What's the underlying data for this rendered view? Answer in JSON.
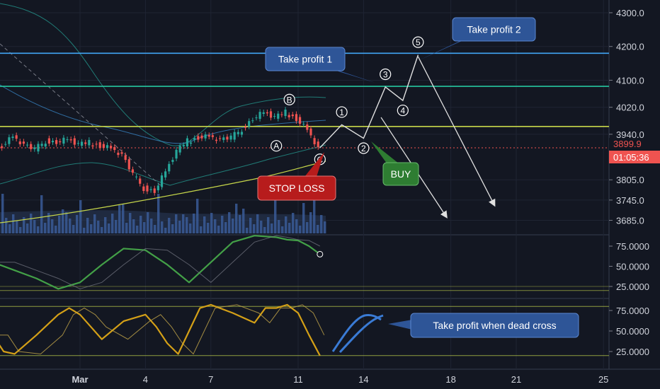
{
  "chart_data": {
    "type": "line",
    "instrument_note": "",
    "price_axis": {
      "ticks": [
        4300.0,
        4200.0,
        4100.0,
        4020.0,
        3940.0,
        3805.0,
        3745.0,
        3685.0
      ],
      "tick_labels": [
        "4300.0",
        "4200.0",
        "4100.0",
        "4020.0",
        "3940.0",
        "3805.0",
        "3745.0",
        "3685.0"
      ],
      "current_price_label": "3899.9",
      "countdown_label": "01:05:36"
    },
    "time_axis": {
      "labels": [
        {
          "text": "Mar",
          "day": 1
        },
        {
          "text": "4",
          "day": 4
        },
        {
          "text": "7",
          "day": 7
        },
        {
          "text": "11",
          "day": 11
        },
        {
          "text": "14",
          "day": 14
        },
        {
          "text": "18",
          "day": 18
        },
        {
          "text": "21",
          "day": 21
        },
        {
          "text": "25",
          "day": 25
        }
      ]
    },
    "horizontal_levels": [
      {
        "name": "Take profit 2 level",
        "price": 4180,
        "color": "#42a5f5"
      },
      {
        "name": "Take profit 1 level",
        "price": 4082,
        "color": "#26c6a0"
      },
      {
        "name": "Entry zone",
        "price": 3963,
        "color": "#c6d64a"
      }
    ],
    "price_series": {
      "name": "",
      "x": [
        -3,
        -2.5,
        -2,
        -1.5,
        -1,
        -0.5,
        0,
        0.5,
        1,
        1.5,
        2,
        2.5,
        3,
        3.5,
        4,
        4.5,
        5,
        5.5,
        6,
        6.5,
        7,
        7.5,
        8,
        8.5,
        9,
        9.5,
        10,
        10.5,
        11,
        11.5,
        12
      ],
      "y": [
        3880,
        3905,
        3935,
        3910,
        3895,
        3920,
        3915,
        3925,
        3910,
        3915,
        3905,
        3900,
        3880,
        3820,
        3780,
        3770,
        3830,
        3890,
        3920,
        3930,
        3935,
        3925,
        3930,
        3955,
        3985,
        4005,
        3990,
        4005,
        3985,
        3955,
        3900
      ]
    },
    "wave_path": {
      "labels": [
        "C",
        "1",
        "2",
        "3",
        "4",
        "5"
      ],
      "x": [
        12,
        13,
        14,
        15,
        15.8,
        16.5
      ],
      "y": [
        3900,
        3968,
        3928,
        4080,
        4040,
        4175
      ]
    },
    "correction_labels": [
      {
        "text": "A",
        "x": 10,
        "y": 3935
      },
      {
        "text": "B",
        "x": 10.6,
        "y": 4005
      },
      {
        "text": "C",
        "x": 12,
        "y": 3895
      }
    ],
    "projection_arrows": [
      {
        "from_x": 16.5,
        "from_y": 4170,
        "to_x": 20,
        "to_y": 3730
      },
      {
        "from_x": 14.8,
        "from_y": 3990,
        "to_x": 17.8,
        "to_y": 3695
      }
    ],
    "annotations": [
      {
        "text": "Take profit 2",
        "kind": "blue"
      },
      {
        "text": "Take profit 1",
        "kind": "blue"
      },
      {
        "text": "STOP LOSS",
        "kind": "red"
      },
      {
        "text": "BUY",
        "kind": "green"
      },
      {
        "text": "Take profit when dead cross",
        "kind": "blue"
      }
    ],
    "indicator1": {
      "ticks": [
        75.0,
        50.0,
        25.0
      ],
      "tick_labels": [
        "75.0000",
        "50.0000",
        "25.0000"
      ],
      "x": [
        -3,
        -2,
        -1,
        0,
        1,
        2,
        3,
        4,
        5,
        6,
        7,
        8,
        9,
        10,
        10.5,
        11,
        11.5,
        12
      ],
      "y": [
        55,
        45,
        35,
        22,
        30,
        52,
        72,
        70,
        52,
        30,
        55,
        80,
        88,
        86,
        83,
        82,
        75,
        65
      ]
    },
    "indicator2": {
      "ticks": [
        75.0,
        50.0,
        25.0
      ],
      "tick_labels": [
        "75.0000",
        "50.0000",
        "25.0000"
      ],
      "x": [
        -3,
        -2.5,
        -2,
        -1,
        0,
        0.5,
        1,
        1.5,
        2,
        3,
        4,
        4.5,
        5,
        5.5,
        6,
        6.5,
        7,
        8,
        9,
        9.5,
        10,
        10.5,
        11,
        11.5,
        12
      ],
      "y": [
        45,
        25,
        22,
        45,
        70,
        78,
        70,
        55,
        40,
        62,
        70,
        55,
        35,
        22,
        50,
        78,
        82,
        72,
        60,
        78,
        78,
        82,
        72,
        45,
        20
      ]
    }
  }
}
